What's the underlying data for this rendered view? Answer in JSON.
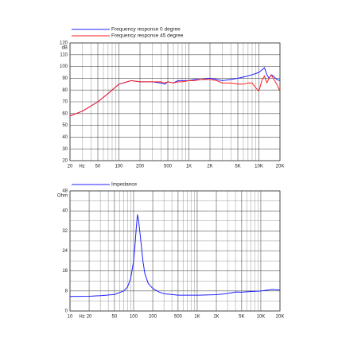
{
  "chart_data": [
    {
      "type": "line",
      "log_x": true,
      "grid": true,
      "legend": "top-left",
      "x_unit": "Hz",
      "y_unit": "dB",
      "xlim": [
        20,
        20000
      ],
      "ylim": [
        20,
        120
      ],
      "xticks": [
        20,
        50,
        100,
        200,
        500,
        {
          "value": 1000,
          "label": "1K"
        },
        {
          "value": 2000,
          "label": "2K"
        },
        {
          "value": 5000,
          "label": "5K"
        },
        {
          "value": 10000,
          "label": "10K"
        },
        {
          "value": 20000,
          "label": "20K"
        }
      ],
      "yticks": [
        20,
        30,
        40,
        50,
        60,
        70,
        80,
        90,
        100,
        110,
        120
      ],
      "x": [
        20,
        30,
        50,
        70,
        100,
        150,
        200,
        300,
        400,
        450,
        500,
        600,
        700,
        800,
        1000,
        1200,
        1500,
        2000,
        2500,
        3000,
        4000,
        5000,
        6000,
        7000,
        8000,
        9000,
        10000,
        11000,
        12000,
        13000,
        14000,
        15000,
        16000,
        18000,
        20000
      ],
      "series": [
        {
          "name": "Frequency response 0 degree",
          "color": "#1f1fff",
          "values": [
            58,
            62,
            70,
            77,
            85,
            88,
            87,
            87,
            86,
            85,
            87,
            86,
            88,
            88,
            88,
            89,
            89,
            90,
            89,
            88,
            89,
            90,
            91,
            92,
            93,
            94,
            95,
            97,
            99,
            93,
            90,
            93,
            92,
            89,
            88
          ]
        },
        {
          "name": "Frequency response 45 degree",
          "color": "#ff1f1f",
          "values": [
            58,
            62,
            70,
            77,
            85,
            88,
            87,
            87,
            87,
            86,
            87,
            86,
            87,
            87,
            88,
            88,
            89,
            89,
            88,
            86,
            86,
            85,
            85,
            86,
            86,
            82,
            79,
            88,
            92,
            86,
            90,
            93,
            90,
            85,
            79
          ]
        }
      ]
    },
    {
      "type": "line",
      "log_x": true,
      "grid": true,
      "minor_y_grid": true,
      "legend": "top-left",
      "x_unit": "Hz",
      "y_unit": "Ohm",
      "xlim": [
        10,
        20000
      ],
      "ylim": [
        0,
        48
      ],
      "xticks": [
        10,
        20,
        50,
        100,
        200,
        500,
        {
          "value": 1000,
          "label": "1K"
        },
        {
          "value": 2000,
          "label": "2K"
        },
        {
          "value": 5000,
          "label": "5K"
        },
        {
          "value": 10000,
          "label": "10K"
        },
        {
          "value": 20000,
          "label": "20K"
        }
      ],
      "yticks": [
        0,
        8,
        16,
        24,
        32,
        40,
        48
      ],
      "x": [
        10,
        20,
        30,
        50,
        70,
        80,
        90,
        100,
        105,
        110,
        115,
        120,
        130,
        140,
        150,
        170,
        200,
        250,
        300,
        500,
        1000,
        2000,
        3000,
        4000,
        5000,
        7000,
        10000,
        15000,
        20000
      ],
      "series": [
        {
          "name": "Impedance",
          "color": "#1f1fff",
          "values": [
            5.8,
            5.9,
            6.1,
            6.6,
            8,
            9.5,
            13,
            20,
            26,
            33,
            38.5,
            36,
            28,
            20,
            15,
            11,
            9,
            7.6,
            6.9,
            6.3,
            6.3,
            6.5,
            7,
            7.6,
            7.5,
            7.8,
            8,
            8.6,
            8.4
          ]
        }
      ]
    }
  ]
}
